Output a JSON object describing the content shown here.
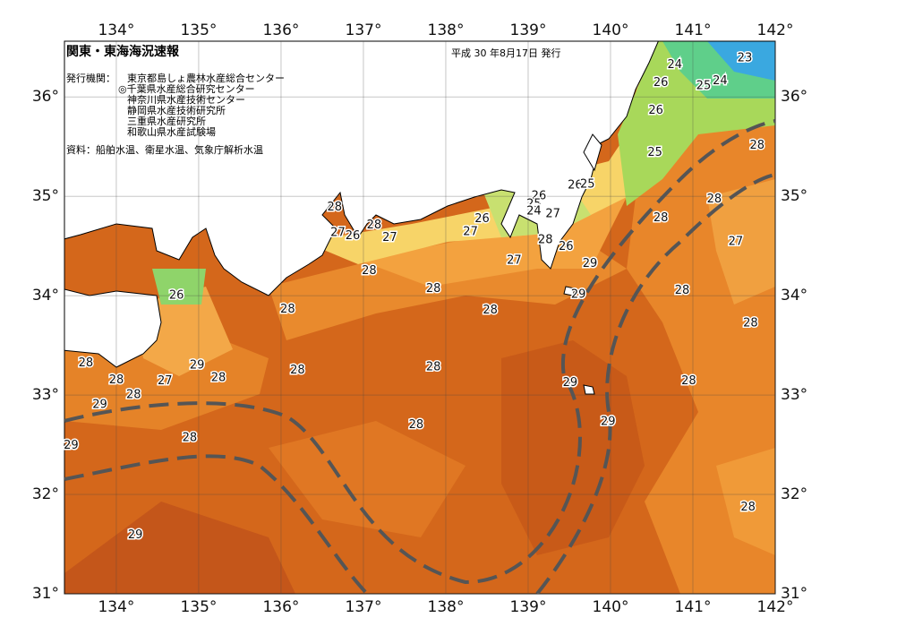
{
  "map": {
    "title": "関東・東海海況速報",
    "date": "平成 30 年8月17日 発行",
    "issuer_label": "発行機関：",
    "agencies": [
      "東京都島しょ農林水産総合センター",
      "◎千葉県水産総合研究センター",
      "神奈川県水産技術センター",
      "静岡県水産技術研究所",
      "三重県水産研究所",
      "和歌山県水産試験場"
    ],
    "source": "資料：船舶水温、衛星水温、気象庁解析水温",
    "lonlim": [
      133.37,
      142
    ],
    "latlim": [
      31,
      36.56
    ],
    "lonticks": [
      {
        "value": 134,
        "label": "134°"
      },
      {
        "value": 135,
        "label": "135°"
      },
      {
        "value": 136,
        "label": "136°"
      },
      {
        "value": 137,
        "label": "137°"
      },
      {
        "value": 138,
        "label": "138°"
      },
      {
        "value": 139,
        "label": "139°"
      },
      {
        "value": 140,
        "label": "140°"
      },
      {
        "value": 141,
        "label": "141°"
      },
      {
        "value": 142,
        "label": "142°"
      }
    ],
    "latticks": [
      {
        "value": 31,
        "label": "31°"
      },
      {
        "value": 32,
        "label": "32°"
      },
      {
        "value": 33,
        "label": "33°"
      },
      {
        "value": 34,
        "label": "34°"
      },
      {
        "value": 35,
        "label": "35°"
      },
      {
        "value": 36,
        "label": "36°"
      }
    ],
    "contour_labels": [
      {
        "value": 23,
        "lon": 141.63,
        "lat": 36.39
      },
      {
        "value": 24,
        "lon": 140.78,
        "lat": 36.32
      },
      {
        "value": 26,
        "lon": 140.61,
        "lat": 36.14
      },
      {
        "value": 25,
        "lon": 141.13,
        "lat": 36.11
      },
      {
        "value": 24,
        "lon": 141.33,
        "lat": 36.16
      },
      {
        "value": 26,
        "lon": 140.55,
        "lat": 35.86
      },
      {
        "value": 28,
        "lon": 141.78,
        "lat": 35.51
      },
      {
        "value": 25,
        "lon": 140.54,
        "lat": 35.44
      },
      {
        "value": 26,
        "lon": 139.57,
        "lat": 35.11
      },
      {
        "value": 25,
        "lon": 139.72,
        "lat": 35.12
      },
      {
        "value": 26,
        "lon": 139.13,
        "lat": 35.0
      },
      {
        "value": 25,
        "lon": 139.07,
        "lat": 34.92
      },
      {
        "value": 24,
        "lon": 139.07,
        "lat": 34.85
      },
      {
        "value": 27,
        "lon": 139.3,
        "lat": 34.82
      },
      {
        "value": 28,
        "lon": 141.26,
        "lat": 34.97
      },
      {
        "value": 28,
        "lon": 140.61,
        "lat": 34.78
      },
      {
        "value": 28,
        "lon": 136.65,
        "lat": 34.89
      },
      {
        "value": 28,
        "lon": 137.13,
        "lat": 34.71
      },
      {
        "value": 27,
        "lon": 136.69,
        "lat": 34.63
      },
      {
        "value": 26,
        "lon": 136.87,
        "lat": 34.6
      },
      {
        "value": 27,
        "lon": 137.32,
        "lat": 34.58
      },
      {
        "value": 26,
        "lon": 138.44,
        "lat": 34.77
      },
      {
        "value": 27,
        "lon": 138.3,
        "lat": 34.64
      },
      {
        "value": 28,
        "lon": 139.21,
        "lat": 34.56
      },
      {
        "value": 26,
        "lon": 139.46,
        "lat": 34.49
      },
      {
        "value": 27,
        "lon": 141.52,
        "lat": 34.54
      },
      {
        "value": 27,
        "lon": 138.83,
        "lat": 34.35
      },
      {
        "value": 29,
        "lon": 139.75,
        "lat": 34.32
      },
      {
        "value": 28,
        "lon": 137.07,
        "lat": 34.25
      },
      {
        "value": 28,
        "lon": 137.85,
        "lat": 34.07
      },
      {
        "value": 29,
        "lon": 139.61,
        "lat": 34.01
      },
      {
        "value": 28,
        "lon": 140.87,
        "lat": 34.05
      },
      {
        "value": 26,
        "lon": 134.73,
        "lat": 34.0
      },
      {
        "value": 28,
        "lon": 136.08,
        "lat": 33.86
      },
      {
        "value": 28,
        "lon": 138.54,
        "lat": 33.85
      },
      {
        "value": 28,
        "lon": 141.7,
        "lat": 33.72
      },
      {
        "value": 28,
        "lon": 133.63,
        "lat": 33.32
      },
      {
        "value": 29,
        "lon": 134.98,
        "lat": 33.3
      },
      {
        "value": 28,
        "lon": 137.85,
        "lat": 33.28
      },
      {
        "value": 28,
        "lon": 136.2,
        "lat": 33.25
      },
      {
        "value": 28,
        "lon": 134.0,
        "lat": 33.15
      },
      {
        "value": 27,
        "lon": 134.59,
        "lat": 33.14
      },
      {
        "value": 28,
        "lon": 135.24,
        "lat": 33.17
      },
      {
        "value": 28,
        "lon": 134.21,
        "lat": 33.0
      },
      {
        "value": 29,
        "lon": 139.51,
        "lat": 33.12
      },
      {
        "value": 28,
        "lon": 140.95,
        "lat": 33.14
      },
      {
        "value": 29,
        "lon": 133.8,
        "lat": 32.9
      },
      {
        "value": 29,
        "lon": 139.97,
        "lat": 32.73
      },
      {
        "value": 28,
        "lon": 137.64,
        "lat": 32.7
      },
      {
        "value": 28,
        "lon": 134.89,
        "lat": 32.57
      },
      {
        "value": 29,
        "lon": 133.45,
        "lat": 32.49
      },
      {
        "value": 28,
        "lon": 141.67,
        "lat": 31.87
      },
      {
        "value": 29,
        "lon": 134.23,
        "lat": 31.59
      }
    ]
  }
}
